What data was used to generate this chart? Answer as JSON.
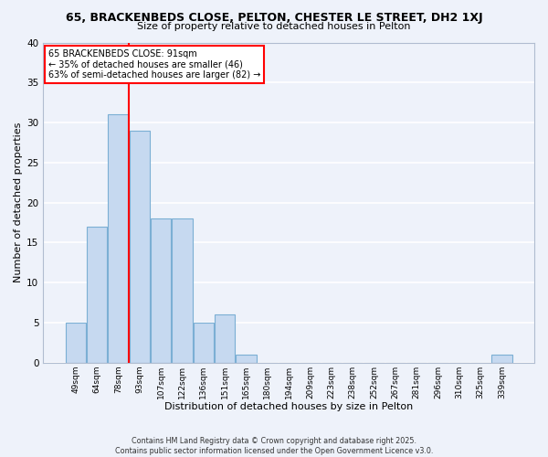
{
  "title_line1": "65, BRACKENBEDS CLOSE, PELTON, CHESTER LE STREET, DH2 1XJ",
  "title_line2": "Size of property relative to detached houses in Pelton",
  "xlabel": "Distribution of detached houses by size in Pelton",
  "ylabel": "Number of detached properties",
  "bar_labels": [
    "49sqm",
    "64sqm",
    "78sqm",
    "93sqm",
    "107sqm",
    "122sqm",
    "136sqm",
    "151sqm",
    "165sqm",
    "180sqm",
    "194sqm",
    "209sqm",
    "223sqm",
    "238sqm",
    "252sqm",
    "267sqm",
    "281sqm",
    "296sqm",
    "310sqm",
    "325sqm",
    "339sqm"
  ],
  "bar_values": [
    5,
    17,
    31,
    29,
    18,
    18,
    5,
    6,
    1,
    0,
    0,
    0,
    0,
    0,
    0,
    0,
    0,
    0,
    0,
    0,
    1
  ],
  "bar_color": "#c6d9f0",
  "bar_edge_color": "#7bafd4",
  "red_line_x": 2.5,
  "ylim": [
    0,
    40
  ],
  "yticks": [
    0,
    5,
    10,
    15,
    20,
    25,
    30,
    35,
    40
  ],
  "background_color": "#eef2fa",
  "grid_color": "#ffffff",
  "annotation_text": "65 BRACKENBEDS CLOSE: 91sqm\n← 35% of detached houses are smaller (46)\n63% of semi-detached houses are larger (82) →",
  "footnote_line1": "Contains HM Land Registry data © Crown copyright and database right 2025.",
  "footnote_line2": "Contains public sector information licensed under the Open Government Licence v3.0."
}
